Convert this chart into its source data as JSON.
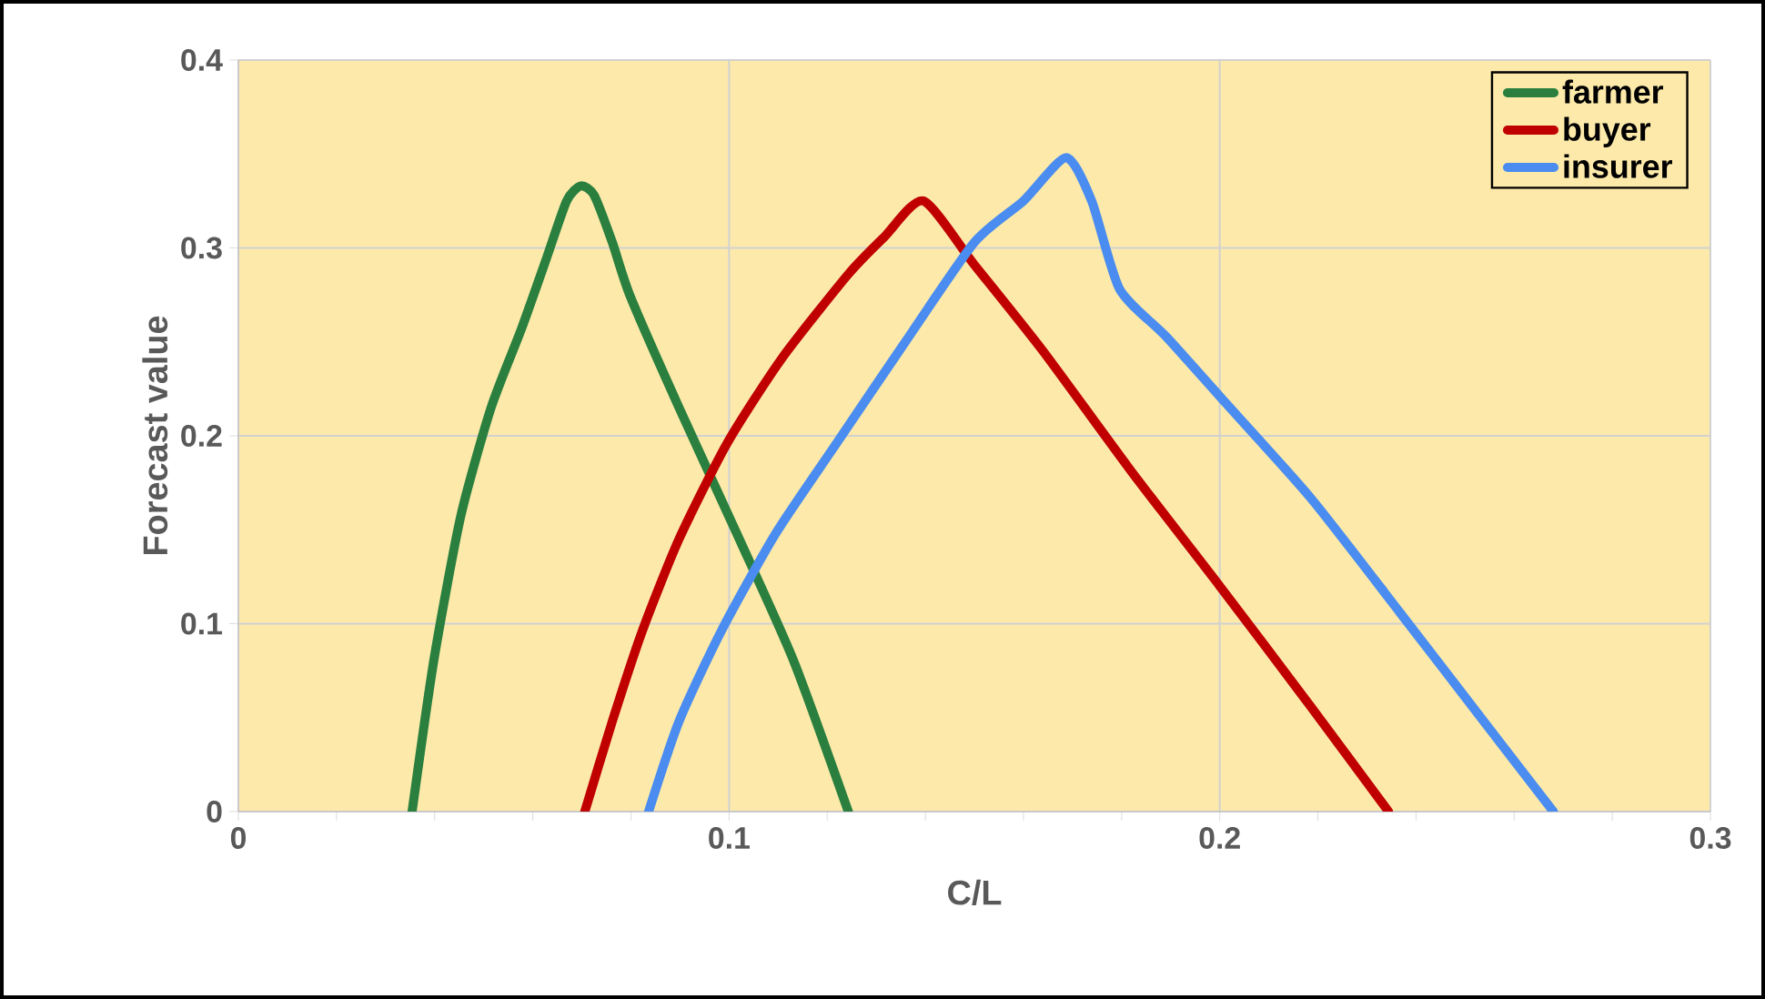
{
  "chart_data": {
    "type": "line",
    "xlabel": "C/L",
    "ylabel": "Forecast value",
    "xlim": [
      0,
      0.3
    ],
    "ylim": [
      0,
      0.4
    ],
    "xticks": [
      0,
      0.1,
      0.2,
      0.3
    ],
    "yticks": [
      0,
      0.1,
      0.2,
      0.3,
      0.4
    ],
    "grid": true,
    "legend": "top right",
    "marker": "none",
    "line_style": "solid",
    "series": [
      {
        "name": "farmer",
        "color": "#2a7f3f",
        "x": [
          0.0354,
          0.0398,
          0.0453,
          0.0515,
          0.0577,
          0.0626,
          0.0669,
          0.0698,
          0.0725,
          0.0762,
          0.0799,
          0.0898,
          0.1021,
          0.1132,
          0.1243
        ],
        "values": [
          0,
          0.08,
          0.157,
          0.215,
          0.257,
          0.293,
          0.325,
          0.333,
          0.328,
          0.303,
          0.274,
          0.215,
          0.145,
          0.08,
          0
        ]
      },
      {
        "name": "buyer",
        "color": "#c00000",
        "x": [
          0.0706,
          0.0762,
          0.0823,
          0.0898,
          0.0996,
          0.1107,
          0.1243,
          0.1317,
          0.1396,
          0.15,
          0.164,
          0.182,
          0.2,
          0.2185,
          0.2344
        ],
        "values": [
          0,
          0.048,
          0.096,
          0.145,
          0.196,
          0.241,
          0.286,
          0.306,
          0.325,
          0.291,
          0.245,
          0.181,
          0.12,
          0.056,
          0
        ]
      },
      {
        "name": "insurer",
        "color": "#4a8cf0",
        "x": [
          0.0836,
          0.0898,
          0.0984,
          0.1095,
          0.1219,
          0.1354,
          0.15,
          0.16,
          0.1687,
          0.1739,
          0.1796,
          0.189,
          0.2,
          0.2185,
          0.2367,
          0.2544,
          0.268
        ],
        "values": [
          0,
          0.048,
          0.096,
          0.148,
          0.196,
          0.248,
          0.303,
          0.325,
          0.348,
          0.325,
          0.278,
          0.253,
          0.221,
          0.167,
          0.106,
          0.046,
          0
        ]
      }
    ]
  }
}
